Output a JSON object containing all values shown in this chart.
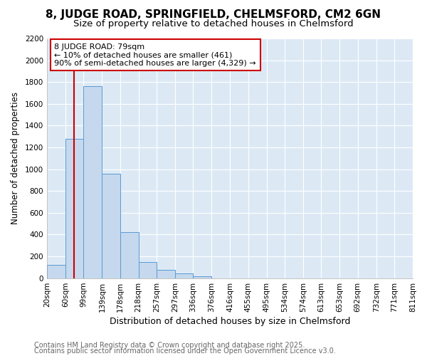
{
  "title1": "8, JUDGE ROAD, SPRINGFIELD, CHELMSFORD, CM2 6GN",
  "title2": "Size of property relative to detached houses in Chelmsford",
  "xlabel": "Distribution of detached houses by size in Chelmsford",
  "ylabel": "Number of detached properties",
  "footer1": "Contains HM Land Registry data © Crown copyright and database right 2025.",
  "footer2": "Contains public sector information licensed under the Open Government Licence v3.0.",
  "bin_labels": [
    "20sqm",
    "60sqm",
    "99sqm",
    "139sqm",
    "178sqm",
    "218sqm",
    "257sqm",
    "297sqm",
    "336sqm",
    "376sqm",
    "416sqm",
    "455sqm",
    "495sqm",
    "534sqm",
    "574sqm",
    "613sqm",
    "653sqm",
    "692sqm",
    "732sqm",
    "771sqm",
    "811sqm"
  ],
  "bin_edges": [
    20,
    60,
    99,
    139,
    178,
    218,
    257,
    297,
    336,
    376,
    416,
    455,
    495,
    534,
    574,
    613,
    653,
    692,
    732,
    771,
    811
  ],
  "counts": [
    120,
    1280,
    1760,
    960,
    420,
    150,
    75,
    40,
    20,
    0,
    0,
    0,
    0,
    0,
    0,
    0,
    0,
    0,
    0,
    0
  ],
  "bar_color": "#c5d8ed",
  "bar_edge_color": "#5b9bd5",
  "plot_bg_color": "#dce9f5",
  "fig_bg_color": "#ffffff",
  "grid_color": "#ffffff",
  "property_size": 79,
  "property_line_color": "#cc0000",
  "annotation_line1": "8 JUDGE ROAD: 79sqm",
  "annotation_line2": "← 10% of detached houses are smaller (461)",
  "annotation_line3": "90% of semi-detached houses are larger (4,329) →",
  "annotation_box_color": "#cc0000",
  "ylim": [
    0,
    2200
  ],
  "yticks": [
    0,
    200,
    400,
    600,
    800,
    1000,
    1200,
    1400,
    1600,
    1800,
    2000,
    2200
  ],
  "title1_fontsize": 11,
  "title2_fontsize": 9.5,
  "xlabel_fontsize": 9,
  "ylabel_fontsize": 8.5,
  "footer_fontsize": 7,
  "tick_fontsize": 7.5,
  "annotation_fontsize": 8
}
